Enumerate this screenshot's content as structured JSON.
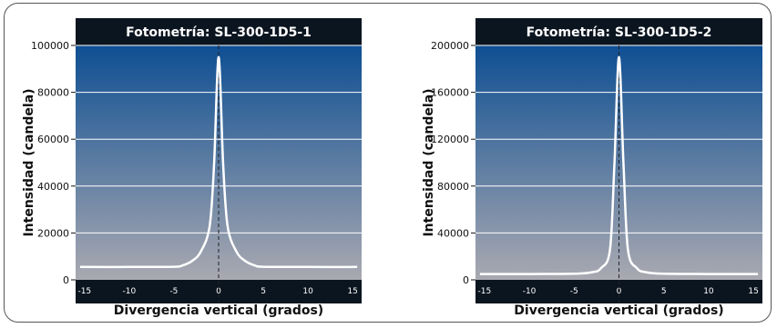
{
  "chart_data": [
    {
      "type": "line",
      "title": "Fotometría: SL-300-1D5-1",
      "xlabel": "Divergencia vertical (grados)",
      "ylabel": "Intensidad (candela)",
      "xlim": [
        -16,
        16
      ],
      "ylim": [
        0,
        100000
      ],
      "yticks": [
        "0",
        "20000",
        "40000",
        "60000",
        "80000",
        "100000"
      ],
      "ytick_values": [
        0,
        20000,
        40000,
        60000,
        80000,
        100000
      ],
      "xticks": [
        "-15",
        "-10",
        "-5",
        "0",
        "5",
        "10",
        "15"
      ],
      "xtick_values": [
        -15,
        -10,
        -5,
        0,
        5,
        10,
        15
      ],
      "grid": true,
      "series": [
        {
          "x": [
            -15.5,
            -10,
            -5,
            -4,
            -3,
            -2,
            -1,
            -0.5,
            0,
            0.5,
            1,
            2,
            3,
            4,
            5,
            10,
            15.5
          ],
          "y": [
            5500,
            5500,
            5600,
            6200,
            8000,
            12000,
            23000,
            50000,
            95000,
            50000,
            23000,
            12000,
            8000,
            6200,
            5600,
            5500,
            5500
          ]
        }
      ]
    },
    {
      "type": "line",
      "title": "Fotometría: SL-300-1D5-2",
      "xlabel": "Divergencia vertical (grados)",
      "ylabel": "Intensidad (candela)",
      "xlim": [
        -16,
        16
      ],
      "ylim": [
        0,
        200000
      ],
      "yticks": [
        "0",
        "40000",
        "80000",
        "120000",
        "160000",
        "200000"
      ],
      "ytick_values": [
        0,
        40000,
        80000,
        120000,
        160000,
        200000
      ],
      "xticks": [
        "-15",
        "-10",
        "-5",
        "0",
        "5",
        "10",
        "15"
      ],
      "xtick_values": [
        -15,
        -10,
        -5,
        0,
        5,
        10,
        15
      ],
      "grid": true,
      "series": [
        {
          "x": [
            -15.5,
            -10,
            -5,
            -3,
            -2,
            -1,
            -0.5,
            0,
            0.5,
            1,
            2,
            3,
            5,
            10,
            15.5
          ],
          "y": [
            5000,
            5000,
            5200,
            6500,
            10000,
            26000,
            100000,
            190000,
            100000,
            26000,
            10000,
            6500,
            5200,
            5000,
            5000
          ]
        }
      ]
    }
  ],
  "colors": {
    "title_band": "#0b1520",
    "plot_top": "#0e4f93",
    "plot_bottom": "#a9a9b1",
    "curve": "#ffffff",
    "grid": "#ffffff"
  }
}
